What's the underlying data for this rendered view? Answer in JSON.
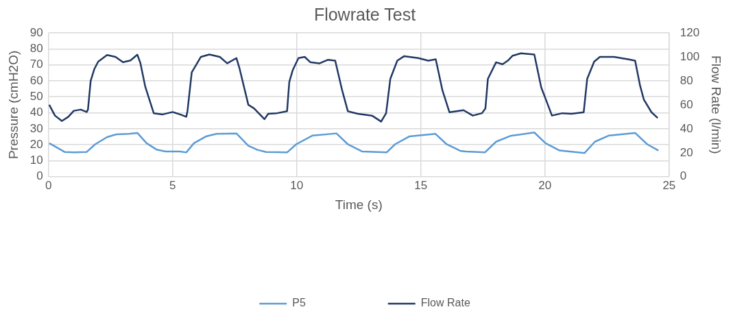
{
  "chart_data": {
    "type": "line",
    "title": "Flowrate Test",
    "xlabel": "Time (s)",
    "ylabel": "Pressure (cmH2O)",
    "y2label": "Flow Rate (l/min)",
    "xlim": [
      0,
      25
    ],
    "xticks": [
      0,
      5,
      10,
      15,
      20,
      25
    ],
    "ylim": [
      0,
      90
    ],
    "yticks": [
      0,
      10,
      20,
      30,
      40,
      50,
      60,
      70,
      80,
      90
    ],
    "y2lim": [
      0,
      120
    ],
    "y2ticks": [
      0,
      20,
      40,
      60,
      80,
      100,
      120
    ],
    "grid": true,
    "legend": "bottom",
    "marker": "none",
    "line_style": "solid",
    "series": [
      {
        "name": "P5",
        "color": "#5b9bd5",
        "x": [
          0.03,
          0.65,
          1.02,
          1.54,
          1.88,
          2.36,
          2.73,
          3.24,
          3.58,
          3.95,
          4.35,
          4.72,
          5.29,
          5.55,
          5.86,
          6.34,
          6.77,
          7.57,
          8.05,
          8.42,
          8.76,
          9.61,
          9.98,
          10.64,
          11.6,
          12.06,
          12.63,
          13.62,
          13.96,
          14.53,
          15.59,
          16.04,
          16.61,
          16.81,
          17.58,
          18.03,
          18.6,
          19.57,
          20.02,
          20.59,
          21.59,
          22.01,
          22.58,
          23.63,
          24.12,
          24.57
        ],
        "values": [
          21,
          15.5,
          15.2,
          15.5,
          20.3,
          24.8,
          26.5,
          26.8,
          27.4,
          21,
          17,
          15.8,
          15.8,
          15.2,
          21,
          25.2,
          26.8,
          27.1,
          19.4,
          16.8,
          15.5,
          15.2,
          20.3,
          25.8,
          27.1,
          20.3,
          15.8,
          15.2,
          20.3,
          25.2,
          26.8,
          20.3,
          16.1,
          15.8,
          15.2,
          21.9,
          25.5,
          27.7,
          21,
          16.4,
          14.8,
          21.9,
          25.8,
          27.4,
          20.3,
          16.4
        ]
      },
      {
        "name": "Flow Rate",
        "color": "#203864",
        "axis": "y2",
        "x": [
          0.03,
          0.26,
          0.54,
          0.8,
          1.02,
          1.3,
          1.54,
          1.59,
          1.7,
          1.85,
          2.0,
          2.36,
          2.7,
          3.0,
          3.3,
          3.58,
          3.7,
          3.9,
          4.24,
          4.6,
          5.0,
          5.3,
          5.55,
          5.6,
          5.77,
          6.14,
          6.48,
          6.9,
          7.2,
          7.57,
          7.7,
          8.05,
          8.28,
          8.7,
          8.85,
          9.2,
          9.61,
          9.7,
          9.84,
          10.07,
          10.32,
          10.55,
          10.92,
          11.26,
          11.55,
          11.83,
          12.06,
          12.46,
          13.03,
          13.4,
          13.6,
          13.77,
          14.05,
          14.33,
          14.9,
          15.3,
          15.6,
          15.87,
          16.15,
          16.72,
          17.09,
          17.46,
          17.6,
          17.7,
          18.03,
          18.29,
          18.5,
          18.7,
          19.03,
          19.57,
          19.85,
          20.08,
          20.28,
          20.7,
          21.07,
          21.56,
          21.7,
          21.98,
          22.21,
          22.78,
          23.35,
          23.63,
          23.83,
          23.98,
          24.29,
          24.54
        ],
        "values": [
          60,
          51,
          46.5,
          50,
          55,
          56,
          54,
          56,
          80,
          90,
          96,
          101.5,
          100,
          95.5,
          97,
          101.8,
          95,
          75,
          53,
          52,
          54,
          52,
          50,
          55,
          87,
          100,
          102,
          100,
          94.6,
          99,
          90,
          60,
          57,
          48,
          52.5,
          53,
          54.6,
          79,
          89,
          99,
          100,
          95.5,
          94.6,
          97.6,
          96.8,
          72,
          54.6,
          52.5,
          51,
          46,
          53,
          81.7,
          96.8,
          100.6,
          99,
          96.8,
          98,
          72,
          53.8,
          55.5,
          51,
          53,
          57,
          81.7,
          95.5,
          93.8,
          96.8,
          101,
          103,
          102,
          74.4,
          62,
          51,
          53,
          52.5,
          53.8,
          81.7,
          96,
          100,
          100,
          98,
          96.8,
          76,
          64.5,
          53.8,
          49
        ]
      }
    ]
  }
}
